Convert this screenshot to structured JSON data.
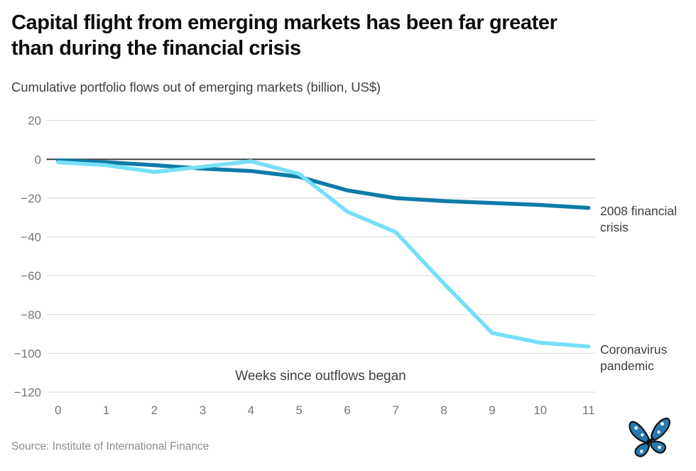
{
  "header": {
    "title_lines": [
      "Capital flight from emerging markets has been far greater",
      "than during the financial crisis"
    ],
    "subtitle": "Cumulative portfolio flows out of emerging markets (billion, US$)"
  },
  "chart_data": {
    "type": "line",
    "x": [
      0,
      1,
      2,
      3,
      4,
      5,
      6,
      7,
      8,
      9,
      10,
      11
    ],
    "series": [
      {
        "name": "2008 financial crisis",
        "color": "#0e7ba8",
        "values": [
          -0.5,
          -1.5,
          -3,
          -4.8,
          -6,
          -9,
          -16,
          -20,
          -21.5,
          -22.5,
          -23.5,
          -25
        ]
      },
      {
        "name": "Coronavirus pandemic",
        "color": "#76dff9",
        "values": [
          -1.5,
          -3,
          -6.5,
          -3.8,
          -1,
          -7.5,
          -27,
          -37.5,
          -64,
          -89.5,
          -94.5,
          -96.5
        ]
      }
    ],
    "xlabel": "Weeks since outflows began",
    "ylabel": "",
    "xlim": [
      0,
      11
    ],
    "ylim": [
      -120,
      20
    ],
    "x_ticks": [
      0,
      1,
      2,
      3,
      4,
      5,
      6,
      7,
      8,
      9,
      10,
      11
    ],
    "y_ticks": [
      20,
      0,
      -20,
      -40,
      -60,
      -80,
      -100,
      -120
    ],
    "grid": true,
    "zero_line": true,
    "legend_position": "right of line ends"
  },
  "colors": {
    "grid_line": "#d8d8d8",
    "zero_line": "#404040",
    "tick_text": "#757575",
    "series_label_text": "#3d3d3d",
    "logo_blue": "#2579ae"
  },
  "footer": {
    "source": "Source: Institute of International Finance"
  },
  "logo": {
    "name": "quartz-butterfly"
  }
}
